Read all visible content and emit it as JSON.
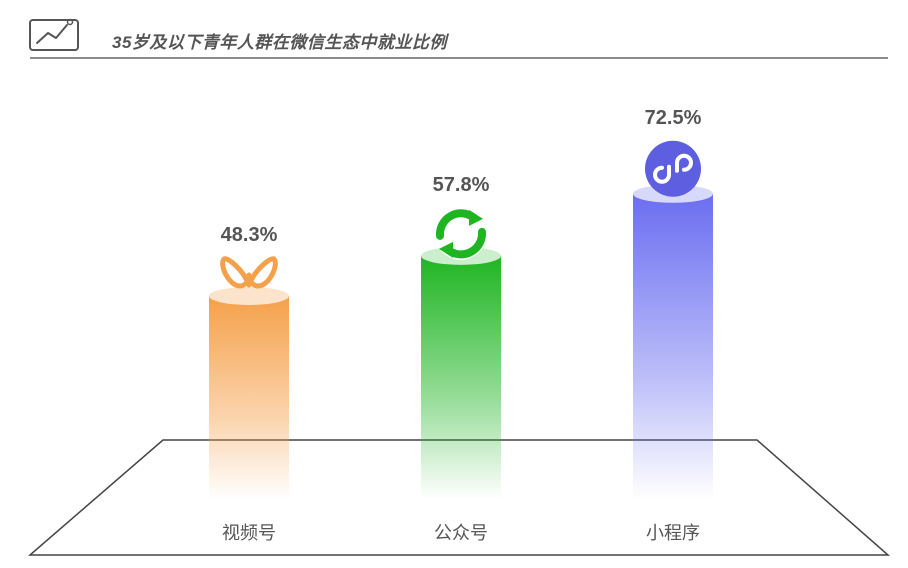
{
  "chart_data": {
    "type": "bar",
    "title": "35岁及以下青年人群在微信生态中就业比例",
    "categories": [
      "视频号",
      "公众号",
      "小程序"
    ],
    "values": [
      48.3,
      57.8,
      72.5
    ],
    "value_labels": [
      "48.3%",
      "57.8%",
      "72.5%"
    ],
    "unit": "%",
    "ylim": [
      0,
      100
    ],
    "grid": false,
    "legend": "none",
    "bar_icons": [
      "channels-icon",
      "official-account-icon",
      "mini-program-icon"
    ],
    "colors": [
      "#F5A04A",
      "#1FB522",
      "#6A6EF0"
    ]
  },
  "palette": {
    "text": "#555555",
    "line": "#666666",
    "platform": "#444444"
  }
}
